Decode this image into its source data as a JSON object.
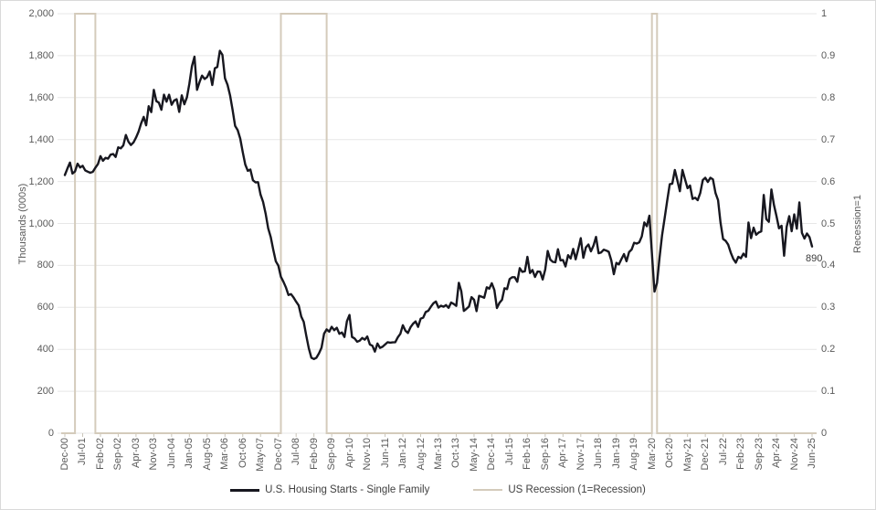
{
  "colors": {
    "housing_line": "#17171f",
    "recession_line": "#d4cbbb",
    "gridline": "#e7e7e7",
    "tick_mark": "#c9c4b8",
    "axis_text": "#595959",
    "background": "#ffffff",
    "border": "#d9d9d9"
  },
  "legend": {
    "housing_label": "U.S. Housing Starts - Single Family",
    "recession_label": "US Recession (1=Recession)"
  },
  "chart_data": {
    "type": "line",
    "title": "",
    "frequency": "monthly",
    "start_month": "Dec-00",
    "end_month": "Jun-25",
    "x_tick_interval_months": 7,
    "x_labels": [
      "Dec-00",
      "Jul-01",
      "Feb-02",
      "Sep-02",
      "Apr-03",
      "Nov-03",
      "Jun-04",
      "Jan-05",
      "Aug-05",
      "Mar-06",
      "Oct-06",
      "May-07",
      "Dec-07",
      "Jul-08",
      "Feb-09",
      "Sep-09",
      "Apr-10",
      "Nov-10",
      "Jun-11",
      "Jan-12",
      "Aug-12",
      "Mar-13",
      "Oct-13",
      "May-14",
      "Dec-14",
      "Jul-15",
      "Feb-16",
      "Sep-16",
      "Apr-17",
      "Nov-17",
      "Jun-18",
      "Jan-19",
      "Aug-19",
      "Mar-20",
      "Oct-20",
      "May-21",
      "Dec-21",
      "Jul-22",
      "Feb-23",
      "Sep-23",
      "Apr-24",
      "Nov-24",
      "Jun-25"
    ],
    "left_axis": {
      "title": "Thousands (000s)",
      "min": 0,
      "max": 2000,
      "tick_labels": [
        "2,000",
        "1,800",
        "1,600",
        "1,400",
        "1,200",
        "1,000",
        "800",
        "600",
        "400",
        "200",
        "0"
      ]
    },
    "right_axis": {
      "title": "Recession=1",
      "min": 0,
      "max": 1,
      "tick_labels": [
        "1",
        "0.9",
        "0.8",
        "0.7",
        "0.6",
        "0.5",
        "0.4",
        "0.3",
        "0.2",
        "0.1",
        "0"
      ]
    },
    "end_label": "890",
    "series": [
      {
        "name": "U.S. Housing Starts - Single Family",
        "axis": "left",
        "values": [
          1231,
          1262,
          1290,
          1238,
          1248,
          1285,
          1267,
          1275,
          1253,
          1247,
          1242,
          1246,
          1266,
          1283,
          1321,
          1299,
          1313,
          1309,
          1328,
          1331,
          1317,
          1363,
          1358,
          1372,
          1422,
          1390,
          1374,
          1386,
          1409,
          1438,
          1477,
          1508,
          1468,
          1559,
          1531,
          1637,
          1583,
          1576,
          1542,
          1614,
          1581,
          1614,
          1566,
          1586,
          1592,
          1532,
          1611,
          1568,
          1601,
          1666,
          1749,
          1795,
          1637,
          1675,
          1705,
          1689,
          1698,
          1724,
          1660,
          1740,
          1746,
          1823,
          1804,
          1692,
          1661,
          1610,
          1542,
          1465,
          1445,
          1405,
          1339,
          1281,
          1251,
          1257,
          1206,
          1196,
          1197,
          1138,
          1103,
          1047,
          977,
          935,
          876,
          820,
          799,
          746,
          722,
          694,
          659,
          663,
          647,
          627,
          609,
          556,
          531,
          465,
          404,
          360,
          354,
          360,
          381,
          408,
          475,
          495,
          484,
          507,
          491,
          503,
          474,
          480,
          459,
          534,
          564,
          459,
          452,
          436,
          441,
          454,
          446,
          461,
          423,
          417,
          389,
          428,
          407,
          412,
          423,
          434,
          432,
          433,
          434,
          457,
          474,
          515,
          489,
          478,
          505,
          522,
          533,
          507,
          546,
          551,
          578,
          584,
          603,
          619,
          628,
          599,
          608,
          603,
          611,
          598,
          623,
          616,
          607,
          717,
          677,
          583,
          593,
          604,
          649,
          636,
          582,
          655,
          651,
          646,
          696,
          689,
          715,
          683,
          597,
          622,
          636,
          691,
          687,
          735,
          744,
          744,
          722,
          787,
          769,
          772,
          841,
          764,
          778,
          745,
          771,
          770,
          733,
          781,
          869,
          828,
          817,
          815,
          877,
          824,
          826,
          795,
          849,
          833,
          879,
          829,
          877,
          930,
          836,
          886,
          900,
          867,
          894,
          936,
          858,
          862,
          875,
          871,
          865,
          824,
          758,
          812,
          805,
          830,
          854,
          820,
          864,
          876,
          908,
          904,
          910,
          938,
          1005,
          987,
          1037,
          856,
          675,
          717,
          839,
          944,
          1025,
          1108,
          1187,
          1190,
          1255,
          1206,
          1154,
          1255,
          1211,
          1168,
          1181,
          1117,
          1123,
          1111,
          1145,
          1207,
          1218,
          1198,
          1218,
          1210,
          1145,
          1111,
          1004,
          926,
          917,
          899,
          861,
          832,
          813,
          841,
          834,
          856,
          841,
          1005,
          930,
          980,
          946,
          957,
          962,
          1136,
          1021,
          1008,
          1162,
          1088,
          1036,
          977,
          989,
          846,
          984,
          1035,
          963,
          1043,
          975,
          1100,
          955,
          928,
          952,
          935,
          890
        ]
      },
      {
        "name": "US Recession (1=Recession)",
        "axis": "right",
        "recession_periods": [
          {
            "start": "Apr-01",
            "end": "Nov-01",
            "start_index": 4,
            "end_index": 11
          },
          {
            "start": "Jan-08",
            "end": "Jun-09",
            "start_index": 85,
            "end_index": 102
          },
          {
            "start": "Mar-20",
            "end": "Apr-20",
            "start_index": 231,
            "end_index": 232
          }
        ]
      }
    ]
  }
}
